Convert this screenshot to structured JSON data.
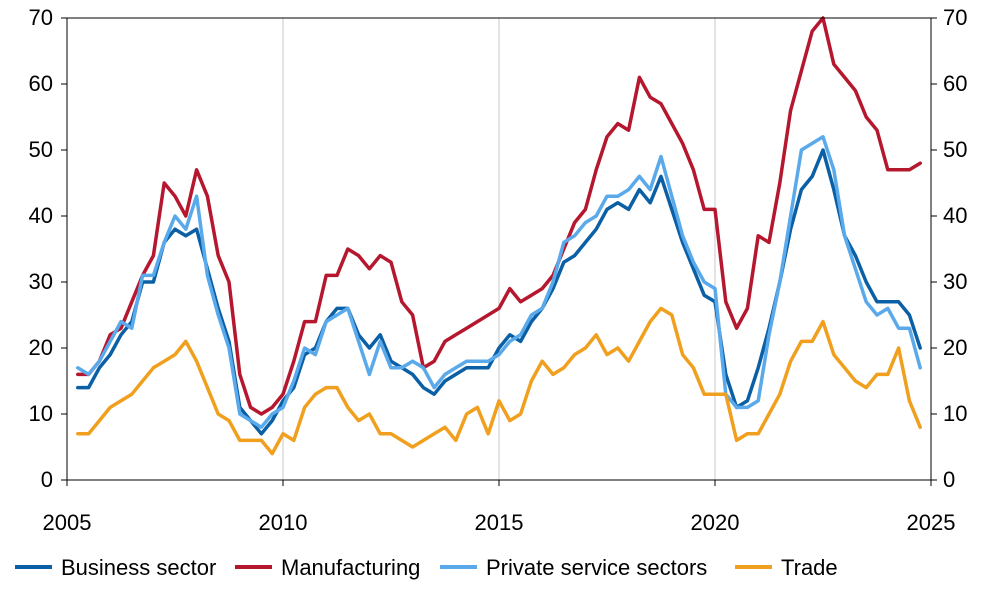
{
  "chart_data": {
    "type": "line",
    "title": "",
    "xlabel": "",
    "ylabel": "",
    "xlim": [
      2005,
      2025
    ],
    "ylim": [
      0,
      70
    ],
    "x_ticks": [
      2005,
      2010,
      2015,
      2020,
      2025
    ],
    "y_ticks": [
      0,
      10,
      20,
      30,
      40,
      50,
      60,
      70
    ],
    "grid": "vertical lines at 2010, 2015, 2020",
    "legend_position": "bottom",
    "series": [
      {
        "name": "Business sector",
        "color": "#0b5fa5",
        "points": [
          [
            2005.25,
            14
          ],
          [
            2005.5,
            14
          ],
          [
            2005.75,
            17
          ],
          [
            2006.0,
            19
          ],
          [
            2006.25,
            22
          ],
          [
            2006.5,
            24
          ],
          [
            2006.75,
            30
          ],
          [
            2007.0,
            30
          ],
          [
            2007.25,
            36
          ],
          [
            2007.5,
            38
          ],
          [
            2007.75,
            37
          ],
          [
            2008.0,
            38
          ],
          [
            2008.25,
            32
          ],
          [
            2008.5,
            26
          ],
          [
            2008.75,
            21
          ],
          [
            2009.0,
            11
          ],
          [
            2009.25,
            9
          ],
          [
            2009.5,
            7
          ],
          [
            2009.75,
            9
          ],
          [
            2010.0,
            12
          ],
          [
            2010.25,
            14
          ],
          [
            2010.5,
            19
          ],
          [
            2010.75,
            20
          ],
          [
            2011.0,
            24
          ],
          [
            2011.25,
            26
          ],
          [
            2011.5,
            26
          ],
          [
            2011.75,
            22
          ],
          [
            2012.0,
            20
          ],
          [
            2012.25,
            22
          ],
          [
            2012.5,
            18
          ],
          [
            2012.75,
            17
          ],
          [
            2013.0,
            16
          ],
          [
            2013.25,
            14
          ],
          [
            2013.5,
            13
          ],
          [
            2013.75,
            15
          ],
          [
            2014.0,
            16
          ],
          [
            2014.25,
            17
          ],
          [
            2014.5,
            17
          ],
          [
            2014.75,
            17
          ],
          [
            2015.0,
            20
          ],
          [
            2015.25,
            22
          ],
          [
            2015.5,
            21
          ],
          [
            2015.75,
            24
          ],
          [
            2016.0,
            26
          ],
          [
            2016.25,
            29
          ],
          [
            2016.5,
            33
          ],
          [
            2016.75,
            34
          ],
          [
            2017.0,
            36
          ],
          [
            2017.25,
            38
          ],
          [
            2017.5,
            41
          ],
          [
            2017.75,
            42
          ],
          [
            2018.0,
            41
          ],
          [
            2018.25,
            44
          ],
          [
            2018.5,
            42
          ],
          [
            2018.75,
            46
          ],
          [
            2019.0,
            41
          ],
          [
            2019.25,
            36
          ],
          [
            2019.5,
            32
          ],
          [
            2019.75,
            28
          ],
          [
            2020.0,
            27
          ],
          [
            2020.25,
            16
          ],
          [
            2020.5,
            11
          ],
          [
            2020.75,
            12
          ],
          [
            2021.0,
            17
          ],
          [
            2021.25,
            23
          ],
          [
            2021.5,
            30
          ],
          [
            2021.75,
            38
          ],
          [
            2022.0,
            44
          ],
          [
            2022.25,
            46
          ],
          [
            2022.5,
            50
          ],
          [
            2022.75,
            44
          ],
          [
            2023.0,
            37
          ],
          [
            2023.25,
            34
          ],
          [
            2023.5,
            30
          ],
          [
            2023.75,
            27
          ],
          [
            2024.0,
            27
          ],
          [
            2024.25,
            27
          ],
          [
            2024.5,
            25
          ],
          [
            2024.75,
            20
          ]
        ]
      },
      {
        "name": "Manufacturing",
        "color": "#b5182e",
        "points": [
          [
            2005.25,
            16
          ],
          [
            2005.5,
            16
          ],
          [
            2005.75,
            18
          ],
          [
            2006.0,
            22
          ],
          [
            2006.25,
            23
          ],
          [
            2006.5,
            27
          ],
          [
            2006.75,
            31
          ],
          [
            2007.0,
            34
          ],
          [
            2007.25,
            45
          ],
          [
            2007.5,
            43
          ],
          [
            2007.75,
            40
          ],
          [
            2008.0,
            47
          ],
          [
            2008.25,
            43
          ],
          [
            2008.5,
            34
          ],
          [
            2008.75,
            30
          ],
          [
            2009.0,
            16
          ],
          [
            2009.25,
            11
          ],
          [
            2009.5,
            10
          ],
          [
            2009.75,
            11
          ],
          [
            2010.0,
            13
          ],
          [
            2010.25,
            18
          ],
          [
            2010.5,
            24
          ],
          [
            2010.75,
            24
          ],
          [
            2011.0,
            31
          ],
          [
            2011.25,
            31
          ],
          [
            2011.5,
            35
          ],
          [
            2011.75,
            34
          ],
          [
            2012.0,
            32
          ],
          [
            2012.25,
            34
          ],
          [
            2012.5,
            33
          ],
          [
            2012.75,
            27
          ],
          [
            2013.0,
            25
          ],
          [
            2013.25,
            17
          ],
          [
            2013.5,
            18
          ],
          [
            2013.75,
            21
          ],
          [
            2014.0,
            22
          ],
          [
            2014.25,
            23
          ],
          [
            2014.5,
            24
          ],
          [
            2014.75,
            25
          ],
          [
            2015.0,
            26
          ],
          [
            2015.25,
            29
          ],
          [
            2015.5,
            27
          ],
          [
            2015.75,
            28
          ],
          [
            2016.0,
            29
          ],
          [
            2016.25,
            31
          ],
          [
            2016.5,
            35
          ],
          [
            2016.75,
            39
          ],
          [
            2017.0,
            41
          ],
          [
            2017.25,
            47
          ],
          [
            2017.5,
            52
          ],
          [
            2017.75,
            54
          ],
          [
            2018.0,
            53
          ],
          [
            2018.25,
            61
          ],
          [
            2018.5,
            58
          ],
          [
            2018.75,
            57
          ],
          [
            2019.0,
            54
          ],
          [
            2019.25,
            51
          ],
          [
            2019.5,
            47
          ],
          [
            2019.75,
            41
          ],
          [
            2020.0,
            41
          ],
          [
            2020.25,
            27
          ],
          [
            2020.5,
            23
          ],
          [
            2020.75,
            26
          ],
          [
            2021.0,
            37
          ],
          [
            2021.25,
            36
          ],
          [
            2021.5,
            45
          ],
          [
            2021.75,
            56
          ],
          [
            2022.0,
            62
          ],
          [
            2022.25,
            68
          ],
          [
            2022.5,
            70
          ],
          [
            2022.75,
            63
          ],
          [
            2023.0,
            61
          ],
          [
            2023.25,
            59
          ],
          [
            2023.5,
            55
          ],
          [
            2023.75,
            53
          ],
          [
            2024.0,
            47
          ],
          [
            2024.25,
            47
          ],
          [
            2024.5,
            47
          ],
          [
            2024.75,
            48
          ]
        ]
      },
      {
        "name": "Private service sectors",
        "color": "#5aaaeb",
        "points": [
          [
            2005.25,
            17
          ],
          [
            2005.5,
            16
          ],
          [
            2005.75,
            18
          ],
          [
            2006.0,
            21
          ],
          [
            2006.25,
            24
          ],
          [
            2006.5,
            23
          ],
          [
            2006.75,
            31
          ],
          [
            2007.0,
            31
          ],
          [
            2007.25,
            36
          ],
          [
            2007.5,
            40
          ],
          [
            2007.75,
            38
          ],
          [
            2008.0,
            43
          ],
          [
            2008.25,
            31
          ],
          [
            2008.5,
            25
          ],
          [
            2008.75,
            20
          ],
          [
            2009.0,
            10
          ],
          [
            2009.25,
            9
          ],
          [
            2009.5,
            8
          ],
          [
            2009.75,
            10
          ],
          [
            2010.0,
            11
          ],
          [
            2010.25,
            15
          ],
          [
            2010.5,
            20
          ],
          [
            2010.75,
            19
          ],
          [
            2011.0,
            24
          ],
          [
            2011.25,
            25
          ],
          [
            2011.5,
            26
          ],
          [
            2011.75,
            21
          ],
          [
            2012.0,
            16
          ],
          [
            2012.25,
            21
          ],
          [
            2012.5,
            17
          ],
          [
            2012.75,
            17
          ],
          [
            2013.0,
            18
          ],
          [
            2013.25,
            17
          ],
          [
            2013.5,
            14
          ],
          [
            2013.75,
            16
          ],
          [
            2014.0,
            17
          ],
          [
            2014.25,
            18
          ],
          [
            2014.5,
            18
          ],
          [
            2014.75,
            18
          ],
          [
            2015.0,
            19
          ],
          [
            2015.25,
            21
          ],
          [
            2015.5,
            22
          ],
          [
            2015.75,
            25
          ],
          [
            2016.0,
            26
          ],
          [
            2016.25,
            30
          ],
          [
            2016.5,
            36
          ],
          [
            2016.75,
            37
          ],
          [
            2017.0,
            39
          ],
          [
            2017.25,
            40
          ],
          [
            2017.5,
            43
          ],
          [
            2017.75,
            43
          ],
          [
            2018.0,
            44
          ],
          [
            2018.25,
            46
          ],
          [
            2018.5,
            44
          ],
          [
            2018.75,
            49
          ],
          [
            2019.0,
            43
          ],
          [
            2019.25,
            37
          ],
          [
            2019.5,
            33
          ],
          [
            2019.75,
            30
          ],
          [
            2020.0,
            29
          ],
          [
            2020.25,
            13
          ],
          [
            2020.5,
            11
          ],
          [
            2020.75,
            11
          ],
          [
            2021.0,
            12
          ],
          [
            2021.25,
            22
          ],
          [
            2021.5,
            30
          ],
          [
            2021.75,
            40
          ],
          [
            2022.0,
            50
          ],
          [
            2022.25,
            51
          ],
          [
            2022.5,
            52
          ],
          [
            2022.75,
            47
          ],
          [
            2023.0,
            37
          ],
          [
            2023.25,
            32
          ],
          [
            2023.5,
            27
          ],
          [
            2023.75,
            25
          ],
          [
            2024.0,
            26
          ],
          [
            2024.25,
            23
          ],
          [
            2024.5,
            23
          ],
          [
            2024.75,
            17
          ]
        ]
      },
      {
        "name": "Trade",
        "color": "#f0a01e",
        "points": [
          [
            2005.25,
            7
          ],
          [
            2005.5,
            7
          ],
          [
            2005.75,
            9
          ],
          [
            2006.0,
            11
          ],
          [
            2006.25,
            12
          ],
          [
            2006.5,
            13
          ],
          [
            2006.75,
            15
          ],
          [
            2007.0,
            17
          ],
          [
            2007.25,
            18
          ],
          [
            2007.5,
            19
          ],
          [
            2007.75,
            21
          ],
          [
            2008.0,
            18
          ],
          [
            2008.25,
            14
          ],
          [
            2008.5,
            10
          ],
          [
            2008.75,
            9
          ],
          [
            2009.0,
            6
          ],
          [
            2009.25,
            6
          ],
          [
            2009.5,
            6
          ],
          [
            2009.75,
            4
          ],
          [
            2010.0,
            7
          ],
          [
            2010.25,
            6
          ],
          [
            2010.5,
            11
          ],
          [
            2010.75,
            13
          ],
          [
            2011.0,
            14
          ],
          [
            2011.25,
            14
          ],
          [
            2011.5,
            11
          ],
          [
            2011.75,
            9
          ],
          [
            2012.0,
            10
          ],
          [
            2012.25,
            7
          ],
          [
            2012.5,
            7
          ],
          [
            2012.75,
            6
          ],
          [
            2013.0,
            5
          ],
          [
            2013.25,
            6
          ],
          [
            2013.5,
            7
          ],
          [
            2013.75,
            8
          ],
          [
            2014.0,
            6
          ],
          [
            2014.25,
            10
          ],
          [
            2014.5,
            11
          ],
          [
            2014.75,
            7
          ],
          [
            2015.0,
            12
          ],
          [
            2015.25,
            9
          ],
          [
            2015.5,
            10
          ],
          [
            2015.75,
            15
          ],
          [
            2016.0,
            18
          ],
          [
            2016.25,
            16
          ],
          [
            2016.5,
            17
          ],
          [
            2016.75,
            19
          ],
          [
            2017.0,
            20
          ],
          [
            2017.25,
            22
          ],
          [
            2017.5,
            19
          ],
          [
            2017.75,
            20
          ],
          [
            2018.0,
            18
          ],
          [
            2018.25,
            21
          ],
          [
            2018.5,
            24
          ],
          [
            2018.75,
            26
          ],
          [
            2019.0,
            25
          ],
          [
            2019.25,
            19
          ],
          [
            2019.5,
            17
          ],
          [
            2019.75,
            13
          ],
          [
            2020.0,
            13
          ],
          [
            2020.25,
            13
          ],
          [
            2020.5,
            6
          ],
          [
            2020.75,
            7
          ],
          [
            2021.0,
            7
          ],
          [
            2021.25,
            10
          ],
          [
            2021.5,
            13
          ],
          [
            2021.75,
            18
          ],
          [
            2022.0,
            21
          ],
          [
            2022.25,
            21
          ],
          [
            2022.5,
            24
          ],
          [
            2022.75,
            19
          ],
          [
            2023.0,
            17
          ],
          [
            2023.25,
            15
          ],
          [
            2023.5,
            14
          ],
          [
            2023.75,
            16
          ],
          [
            2024.0,
            16
          ],
          [
            2024.25,
            20
          ],
          [
            2024.5,
            12
          ],
          [
            2024.75,
            8
          ]
        ]
      }
    ]
  }
}
